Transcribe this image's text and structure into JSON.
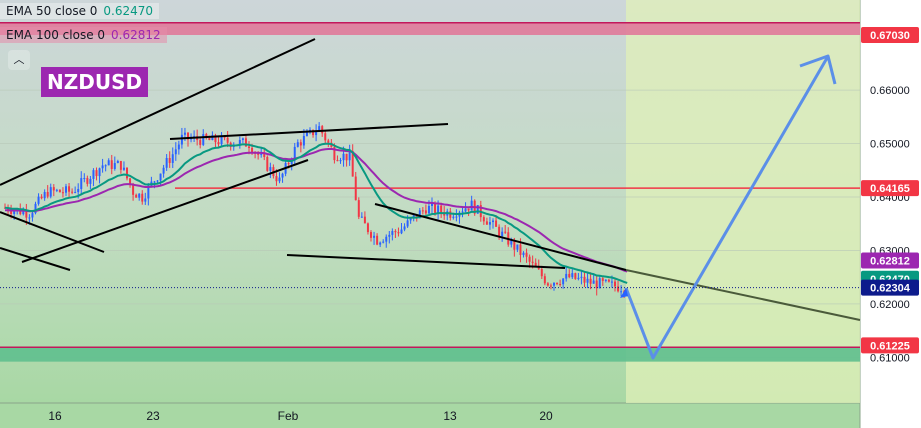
{
  "chart_data": {
    "type": "candlestick",
    "symbol": "NZDUSD",
    "indicators": [
      {
        "name": "EMA 50 close 0",
        "value": "0.62470",
        "color": "#089981"
      },
      {
        "name": "EMA 100 close 0",
        "value": "0.62812",
        "color": "#9c27b0"
      }
    ],
    "y_ticks": [
      "0.61000",
      "0.62000",
      "0.63000",
      "0.64000",
      "0.65000",
      "0.66000"
    ],
    "x_ticks": [
      "16",
      "23",
      "Feb",
      "13",
      "20"
    ],
    "ylim": [
      0.606,
      0.677
    ],
    "price_labels": [
      {
        "value": "0.67030",
        "price": 0.6703,
        "bg": "#f23645",
        "fg": "#ffffff"
      },
      {
        "value": "0.64165",
        "price": 0.64165,
        "bg": "#f23645",
        "fg": "#ffffff"
      },
      {
        "value": "0.62812",
        "price": 0.62812,
        "bg": "#9c27b0",
        "fg": "#ffffff"
      },
      {
        "value": "0.62470",
        "price": 0.6247,
        "bg": "#089981",
        "fg": "#ffffff"
      },
      {
        "value": "0.62304",
        "price": 0.62304,
        "bg": "#0d1b8c",
        "fg": "#ffffff"
      },
      {
        "value": "0.61225",
        "price": 0.61225,
        "bg": "#f23645",
        "fg": "#ffffff"
      }
    ],
    "zones": [
      {
        "name": "resistance-zone",
        "from": 0.6703,
        "to": 0.6726,
        "color": "#e07a9a"
      },
      {
        "name": "support-zone",
        "from": 0.6092,
        "to": 0.6119,
        "color": "#5fbf8e"
      }
    ],
    "levels": [
      {
        "name": "level-line-064165",
        "price": 0.64165,
        "color": "#f23645"
      }
    ],
    "colors": {
      "up": "#2962ff",
      "down": "#f23645",
      "projection": "#5b8fe8",
      "forecast_bg": "#e0f0b8"
    },
    "last_price": 0.62304
  }
}
